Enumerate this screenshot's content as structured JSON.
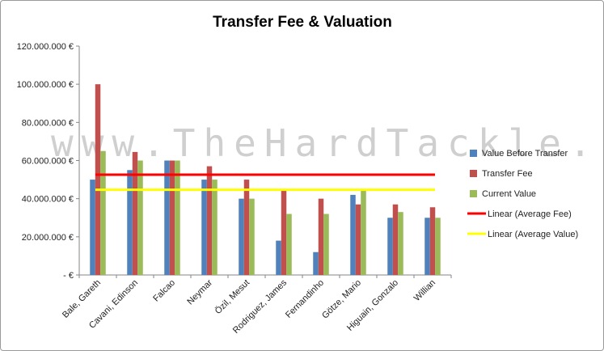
{
  "chart_data": {
    "type": "bar",
    "title": "Transfer Fee & Valuation",
    "watermark": "www.TheHardTackle.com",
    "categories": [
      "Bale, Gareth",
      "Cavani, Edinson",
      "Falcao",
      "Neymar",
      "Özil, Mesut",
      "Rodriguez, James",
      "Fernandinho",
      "Götze, Mario",
      "Higuain, Gonzalo",
      "Willian"
    ],
    "ylim": [
      0,
      120000000
    ],
    "yticks": [
      {
        "value": 0,
        "label": "- €"
      },
      {
        "value": 20000000,
        "label": "20.000.000 €"
      },
      {
        "value": 40000000,
        "label": "40.000.000 €"
      },
      {
        "value": 60000000,
        "label": "60.000.000 €"
      },
      {
        "value": 80000000,
        "label": "80.000.000 €"
      },
      {
        "value": 100000000,
        "label": "100.000.000 €"
      },
      {
        "value": 120000000,
        "label": "120.000.000 €"
      }
    ],
    "grid": false,
    "legend_position": "right",
    "series": [
      {
        "name": "Value Before Transfer",
        "color": "#4f81bd",
        "values": [
          50000000,
          55000000,
          60000000,
          50000000,
          40000000,
          18000000,
          12000000,
          42000000,
          30000000,
          30000000
        ]
      },
      {
        "name": "Transfer Fee",
        "color": "#c0504d",
        "values": [
          100000000,
          64500000,
          60000000,
          57000000,
          50000000,
          45000000,
          40000000,
          37000000,
          37000000,
          35500000
        ]
      },
      {
        "name": "Current Value",
        "color": "#9bbb59",
        "values": [
          65000000,
          60000000,
          60000000,
          50000000,
          40000000,
          32000000,
          32000000,
          45000000,
          33000000,
          30000000
        ]
      }
    ],
    "reference_lines": [
      {
        "name": "Linear (Average Fee)",
        "color": "#ff0000",
        "value": 52600000
      },
      {
        "name": "Linear (Average Value)",
        "color": "#ffff00",
        "value": 44700000
      }
    ]
  }
}
